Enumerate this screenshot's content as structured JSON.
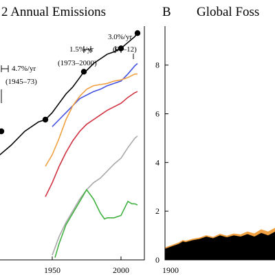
{
  "chart_data": [
    {
      "type": "line",
      "title": "2 Annual Emissions",
      "x_ticks": [
        "1950",
        "2000"
      ],
      "xlim": [
        1912,
        2017
      ],
      "ylim": [
        0,
        10
      ],
      "series": [
        {
          "color": "#000000",
          "x": [
            1900,
            1910,
            1920,
            1930,
            1940,
            1945,
            1950,
            1955,
            1960,
            1965,
            1970,
            1973,
            1975,
            1980,
            1985,
            1990,
            1995,
            2000,
            2005,
            2010,
            2012
          ],
          "y": [
            3.6,
            4.4,
            4.9,
            5.5,
            5.9,
            6.0,
            6.3,
            6.7,
            7.1,
            7.4,
            7.8,
            8.05,
            8.1,
            8.4,
            8.6,
            8.8,
            8.9,
            9.05,
            9.3,
            9.55,
            9.7
          ]
        },
        {
          "color": "#4050e0",
          "x": [
            1950,
            1955,
            1960,
            1965,
            1970,
            1975,
            1980,
            1985,
            1990,
            1995,
            2000,
            2005,
            2010,
            2012
          ],
          "y": [
            5.7,
            6.0,
            6.3,
            6.6,
            6.9,
            7.05,
            7.2,
            7.3,
            7.45,
            7.55,
            7.65,
            7.95,
            8.3,
            8.4
          ]
        },
        {
          "color": "#f0a040",
          "x": [
            1945,
            1950,
            1955,
            1960,
            1965,
            1970,
            1975,
            1980,
            1985,
            1990,
            1995,
            2000,
            2005,
            2010,
            2012
          ],
          "y": [
            4.0,
            4.5,
            5.2,
            6.0,
            6.6,
            7.0,
            7.3,
            7.45,
            7.5,
            7.55,
            7.65,
            7.7,
            7.8,
            7.95,
            7.95
          ]
        },
        {
          "color": "#d03040",
          "x": [
            1945,
            1950,
            1955,
            1960,
            1965,
            1970,
            1975,
            1980,
            1985,
            1990,
            1995,
            2000,
            2005,
            2010,
            2012
          ],
          "y": [
            2.7,
            3.3,
            4.0,
            4.6,
            5.1,
            5.5,
            5.8,
            6.0,
            6.2,
            6.4,
            6.55,
            6.7,
            6.95,
            7.15,
            7.2
          ]
        },
        {
          "color": "#a8a8a8",
          "x": [
            1950,
            1955,
            1960,
            1965,
            1970,
            1975,
            1980,
            1985,
            1990,
            1995,
            2000,
            2005,
            2010,
            2012
          ],
          "y": [
            0.2,
            1.0,
            1.6,
            2.1,
            2.6,
            3.0,
            3.3,
            3.5,
            3.8,
            4.1,
            4.35,
            4.8,
            5.2,
            5.3
          ]
        },
        {
          "color": "#40b040",
          "x": [
            1952,
            1955,
            1960,
            1965,
            1970,
            1975,
            1980,
            1985,
            1988,
            1990,
            1995,
            2000,
            2005,
            2008,
            2010,
            2012
          ],
          "y": [
            0.1,
            0.7,
            1.5,
            2.0,
            2.5,
            3.0,
            2.6,
            2.0,
            1.75,
            1.8,
            1.8,
            1.9,
            2.5,
            2.4,
            2.4,
            2.35
          ]
        }
      ],
      "markers": {
        "x": [
          1913,
          1945,
          1973,
          2000,
          2012
        ],
        "y": [
          5.5,
          6.0,
          8.05,
          9.05,
          9.7
        ]
      },
      "annotations": {
        "rate_1945": "4.7%/yr",
        "period_1945": "(1945–73)",
        "rate_1973": "1.5%/yr",
        "period_1973": "(1973–2000)",
        "rate_2000": "3.0%/yr",
        "period_2000": "(00–12)"
      }
    },
    {
      "type": "area",
      "panel_letter": "B",
      "title": "Global Foss",
      "x_ticks": [
        "1900"
      ],
      "y_ticks": [
        0,
        2,
        4,
        6,
        8
      ],
      "xlim": [
        1900,
        1980
      ],
      "ylim": [
        0,
        9.6
      ],
      "series": [
        {
          "color": "#000000",
          "x": [
            1900,
            1905,
            1910,
            1913,
            1915,
            1920,
            1925,
            1930,
            1935,
            1940,
            1945,
            1950,
            1955,
            1960,
            1965,
            1970,
            1975,
            1980
          ],
          "y": [
            0.45,
            0.55,
            0.65,
            0.75,
            0.72,
            0.8,
            0.85,
            0.95,
            0.88,
            1.0,
            0.92,
            1.0,
            0.95,
            1.05,
            0.95,
            1.1,
            1.0,
            1.15
          ]
        },
        {
          "color": "#f0a040",
          "x": [
            1900,
            1905,
            1910,
            1913,
            1915,
            1920,
            1925,
            1930,
            1935,
            1940,
            1945,
            1950,
            1955,
            1960,
            1965,
            1970,
            1975,
            1980
          ],
          "y": [
            0.05,
            0.05,
            0.05,
            0.05,
            0.05,
            0.05,
            0.05,
            0.05,
            0.05,
            0.06,
            0.06,
            0.07,
            0.08,
            0.1,
            0.12,
            0.14,
            0.15,
            0.15
          ]
        }
      ]
    }
  ]
}
